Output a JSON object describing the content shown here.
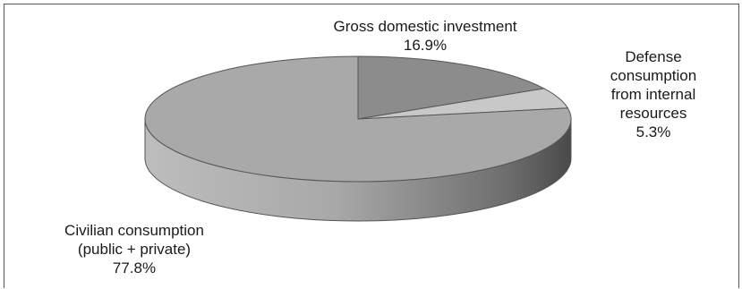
{
  "chart_data": {
    "type": "pie",
    "style": "3d",
    "slices": [
      {
        "label": [
          "Gross domestic investment"
        ],
        "value": 16.9,
        "value_label": "16.9%",
        "color": "#8c8c8c"
      },
      {
        "label": [
          "Defense",
          "consumption",
          "from internal",
          "resources"
        ],
        "value": 5.3,
        "value_label": "5.3%",
        "color": "#c8c8c8"
      },
      {
        "label": [
          "Civilian consumption",
          "(public + private)"
        ],
        "value": 77.8,
        "value_label": "77.8%",
        "color": "#a9a9a9"
      }
    ],
    "legend": "none"
  }
}
